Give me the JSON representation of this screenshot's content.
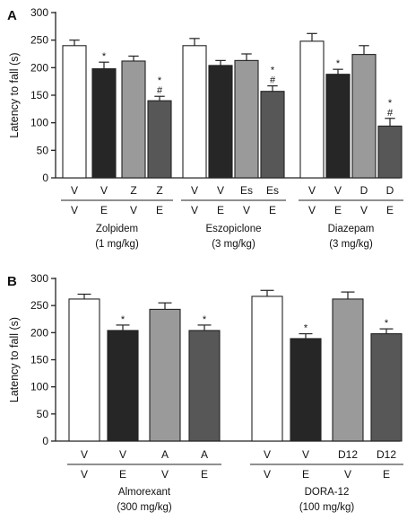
{
  "colors": {
    "V_V": "#ffffff",
    "V_E": "#262626",
    "drug_V": "#9a9a9a",
    "drug_E": "#575757",
    "outline": "#222222"
  },
  "chart_data": [
    {
      "type": "bar",
      "panel": "A",
      "ylabel": "Latency to fall (s)",
      "ylim": [
        0,
        300
      ],
      "yticks": [
        0,
        50,
        100,
        150,
        200,
        250,
        300
      ],
      "groups": [
        {
          "label_line1": "Zolpidem",
          "label_line2": "(1 mg/kg)",
          "bars": [
            {
              "top": "V",
              "bottom": "V",
              "value": 240,
              "error": 10,
              "fill_key": "V_V",
              "marks": []
            },
            {
              "top": "V",
              "bottom": "E",
              "value": 198,
              "error": 12,
              "fill_key": "V_E",
              "marks": [
                "*"
              ]
            },
            {
              "top": "Z",
              "bottom": "V",
              "value": 212,
              "error": 9,
              "fill_key": "drug_V",
              "marks": []
            },
            {
              "top": "Z",
              "bottom": "E",
              "value": 140,
              "error": 8,
              "fill_key": "drug_E",
              "marks": [
                "*",
                "#"
              ]
            }
          ]
        },
        {
          "label_line1": "Eszopiclone",
          "label_line2": "(3 mg/kg)",
          "bars": [
            {
              "top": "V",
              "bottom": "V",
              "value": 240,
              "error": 13,
              "fill_key": "V_V",
              "marks": []
            },
            {
              "top": "V",
              "bottom": "E",
              "value": 204,
              "error": 9,
              "fill_key": "V_E",
              "marks": []
            },
            {
              "top": "Es",
              "bottom": "V",
              "value": 213,
              "error": 12,
              "fill_key": "drug_V",
              "marks": []
            },
            {
              "top": "Es",
              "bottom": "E",
              "value": 157,
              "error": 10,
              "fill_key": "drug_E",
              "marks": [
                "*",
                "#"
              ]
            }
          ]
        },
        {
          "label_line1": "Diazepam",
          "label_line2": "(3 mg/kg)",
          "bars": [
            {
              "top": "V",
              "bottom": "V",
              "value": 248,
              "error": 14,
              "fill_key": "V_V",
              "marks": []
            },
            {
              "top": "V",
              "bottom": "E",
              "value": 188,
              "error": 9,
              "fill_key": "V_E",
              "marks": [
                "*"
              ]
            },
            {
              "top": "D",
              "bottom": "V",
              "value": 224,
              "error": 16,
              "fill_key": "drug_V",
              "marks": []
            },
            {
              "top": "D",
              "bottom": "E",
              "value": 94,
              "error": 14,
              "fill_key": "drug_E",
              "marks": [
                "*",
                "#"
              ]
            }
          ]
        }
      ]
    },
    {
      "type": "bar",
      "panel": "B",
      "ylabel": "Latency to fall (s)",
      "ylim": [
        0,
        300
      ],
      "yticks": [
        0,
        50,
        100,
        150,
        200,
        250,
        300
      ],
      "groups": [
        {
          "label_line1": "Almorexant",
          "label_line2": "(300 mg/kg)",
          "bars": [
            {
              "top": "V",
              "bottom": "V",
              "value": 262,
              "error": 9,
              "fill_key": "V_V",
              "marks": []
            },
            {
              "top": "V",
              "bottom": "E",
              "value": 204,
              "error": 10,
              "fill_key": "V_E",
              "marks": [
                "*"
              ]
            },
            {
              "top": "A",
              "bottom": "V",
              "value": 243,
              "error": 12,
              "fill_key": "drug_V",
              "marks": []
            },
            {
              "top": "A",
              "bottom": "E",
              "value": 204,
              "error": 10,
              "fill_key": "drug_E",
              "marks": [
                "*"
              ]
            }
          ]
        },
        {
          "label_line1": "DORA-12",
          "label_line2": "(100 mg/kg)",
          "bars": [
            {
              "top": "V",
              "bottom": "V",
              "value": 267,
              "error": 11,
              "fill_key": "V_V",
              "marks": []
            },
            {
              "top": "V",
              "bottom": "E",
              "value": 189,
              "error": 9,
              "fill_key": "V_E",
              "marks": [
                "*"
              ]
            },
            {
              "top": "D12",
              "bottom": "V",
              "value": 262,
              "error": 13,
              "fill_key": "drug_V",
              "marks": []
            },
            {
              "top": "D12",
              "bottom": "E",
              "value": 198,
              "error": 9,
              "fill_key": "drug_E",
              "marks": [
                "*"
              ]
            }
          ]
        }
      ]
    }
  ]
}
